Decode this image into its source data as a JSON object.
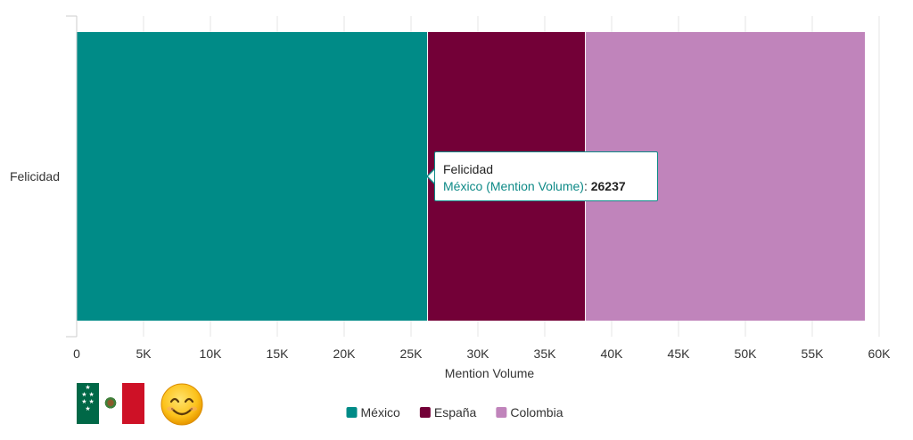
{
  "chart_data": {
    "type": "bar",
    "orientation": "horizontal",
    "stacked": true,
    "categories": [
      "Felicidad"
    ],
    "series": [
      {
        "name": "México",
        "values": [
          26237
        ],
        "color": "#008b87"
      },
      {
        "name": "España",
        "values": [
          11800
        ],
        "color": "#730037"
      },
      {
        "name": "Colombia",
        "values": [
          20900
        ],
        "color": "#c084bb"
      }
    ],
    "xlabel": "Mention Volume",
    "xlim": [
      0,
      60000
    ],
    "x_ticks": [
      0,
      5000,
      10000,
      15000,
      20000,
      25000,
      30000,
      35000,
      40000,
      45000,
      50000,
      55000,
      60000
    ],
    "x_tick_labels": [
      "0",
      "5K",
      "10K",
      "15K",
      "20K",
      "25K",
      "30K",
      "35K",
      "40K",
      "45K",
      "50K",
      "55K",
      "60K"
    ],
    "grid": true,
    "legend_placement": "bottom-center"
  },
  "tooltip": {
    "title": "Felicidad",
    "series_label": "México (Mention Volume)",
    "separator": ": ",
    "value": "26237"
  },
  "decorations": {
    "flag_icon": "mexico-flag-icon",
    "emoji_icon": "smiling-face-icon"
  }
}
